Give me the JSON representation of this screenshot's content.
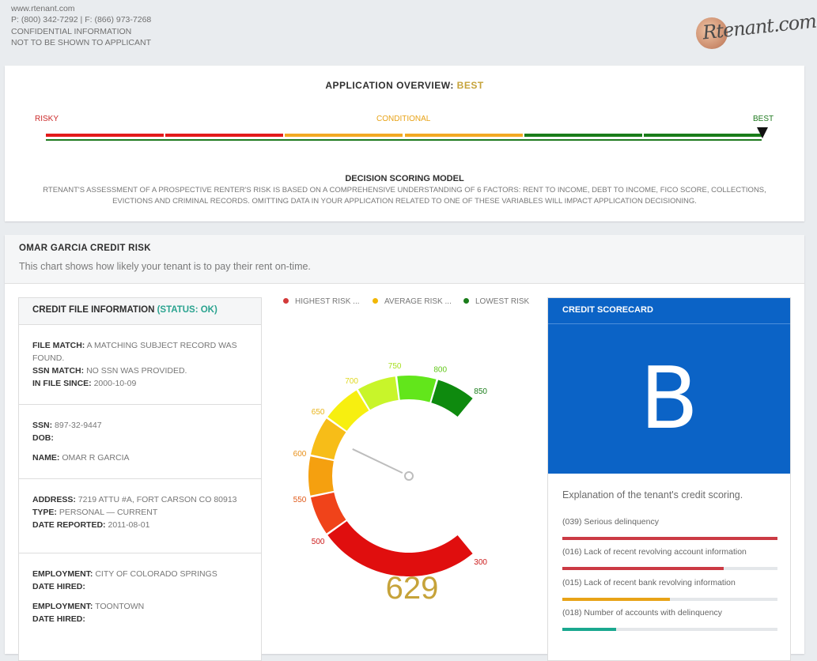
{
  "header": {
    "site": "www.rtenant.com",
    "phone": "P: (800) 342-7292 | F: (866) 973-7268",
    "confidential": "CONFIDENTIAL INFORMATION",
    "not_shown": "NOT TO BE SHOWN TO APPLICANT",
    "logo_text": "Rtenant",
    "logo_suffix": ".com"
  },
  "overview": {
    "title_prefix": "APPLICATION OVERVIEW:",
    "title_rating": "BEST",
    "scale": {
      "low": "RISKY",
      "mid": "CONDITIONAL",
      "high": "BEST"
    },
    "segments": [
      "#e31b1b",
      "#e31b1b",
      "#f2a922",
      "#f2a922",
      "#1a7d1a",
      "#1a7d1a"
    ],
    "model_title": "DECISION SCORING MODEL",
    "model_text": "RTENANT'S ASSESSMENT OF A PROSPECTIVE RENTER'S RISK IS BASED ON A COMPREHENSIVE UNDERSTANDING OF 6 FACTORS: RENT TO INCOME, DEBT TO INCOME, FICO SCORE, COLLECTIONS, EVICTIONS AND CRIMINAL RECORDS. OMITTING DATA IN YOUR APPLICATION RELATED TO ONE OF THESE VARIABLES WILL IMPACT APPLICATION DECISIONING."
  },
  "credit": {
    "title": "OMAR GARCIA CREDIT RISK",
    "subtitle": "This chart shows how likely your tenant is to pay their rent on-time.",
    "file": {
      "title": "CREDIT FILE INFORMATION",
      "status": "(STATUS: OK)",
      "file_match_label": "FILE MATCH:",
      "file_match": "A MATCHING SUBJECT RECORD WAS FOUND.",
      "ssn_match_label": "SSN MATCH:",
      "ssn_match": "NO SSN WAS PROVIDED.",
      "in_file_label": "IN FILE SINCE:",
      "in_file": "2000-10-09",
      "ssn_label": "SSN:",
      "ssn": "897-32-9447",
      "dob_label": "DOB:",
      "dob": "",
      "name_label": "NAME:",
      "name": "OMAR R GARCIA",
      "address_label": "ADDRESS:",
      "address": "7219 ATTU #A, FORT CARSON CO 80913",
      "type_label": "TYPE:",
      "type": "PERSONAL — CURRENT",
      "reported_label": "DATE REPORTED:",
      "reported": "2011-08-01",
      "emp1_label": "EMPLOYMENT:",
      "emp1": "CITY OF COLORADO SPRINGS",
      "hired1_label": "DATE HIRED:",
      "hired1": "",
      "emp2_label": "EMPLOYMENT:",
      "emp2": "TOONTOWN",
      "hired2_label": "DATE HIRED:",
      "hired2": ""
    },
    "legend": [
      {
        "label": "HIGHEST RISK",
        "color": "#d33a3a"
      },
      {
        "label": "AVERAGE RISK",
        "color": "#f2b705"
      },
      {
        "label": "LOWEST RISK",
        "color": "#1a7d1a"
      }
    ],
    "legend_ellipsis": "...",
    "score": "629"
  },
  "chart_data": {
    "type": "gauge",
    "min": 300,
    "max": 850,
    "value": 629,
    "ticks": [
      300,
      500,
      550,
      600,
      650,
      700,
      750,
      800,
      850
    ],
    "bands": [
      {
        "from": 300,
        "to": 500,
        "color": "#e00e0e"
      },
      {
        "from": 500,
        "to": 550,
        "color": "#f0431a"
      },
      {
        "from": 550,
        "to": 600,
        "color": "#f5a00f"
      },
      {
        "from": 600,
        "to": 650,
        "color": "#f7bd18"
      },
      {
        "from": 650,
        "to": 700,
        "color": "#f7ef10"
      },
      {
        "from": 700,
        "to": 750,
        "color": "#c8f52a"
      },
      {
        "from": 750,
        "to": 800,
        "color": "#62e61b"
      },
      {
        "from": 800,
        "to": 850,
        "color": "#0e8a0e"
      }
    ],
    "tick_colors": [
      "#cc1a1a",
      "#cc1a1a",
      "#e05a1a",
      "#e8901a",
      "#e8b41a",
      "#e0d820",
      "#a7df20",
      "#62c81a",
      "#1a7d1a"
    ]
  },
  "scorecard": {
    "title": "CREDIT SCORECARD",
    "grade": "B",
    "explanation": "Explanation of the tenant's credit scoring.",
    "reasons": [
      {
        "label": "(039) Serious delinquency",
        "value": 1.0,
        "color": "#cb3a44"
      },
      {
        "label": "(016) Lack of recent revolving account information",
        "value": 0.75,
        "color": "#cb3a44"
      },
      {
        "label": "(015) Lack of recent bank revolving information",
        "value": 0.5,
        "color": "#e8a317"
      },
      {
        "label": "(018) Number of accounts with delinquency",
        "value": 0.25,
        "color": "#1aa88f"
      }
    ]
  }
}
